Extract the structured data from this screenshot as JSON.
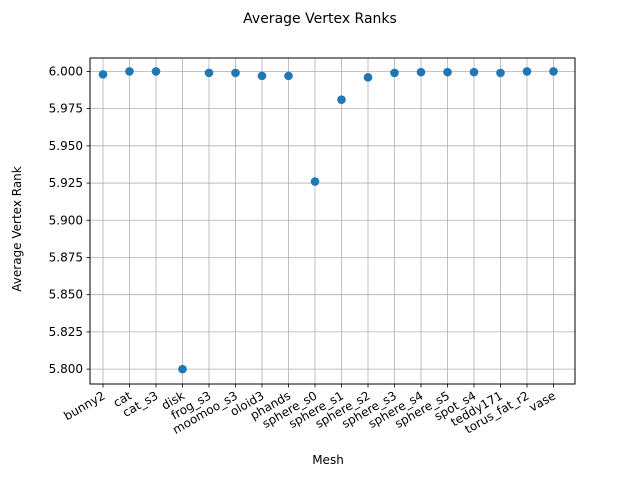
{
  "chart_data": {
    "type": "scatter",
    "title": "Average Vertex Ranks",
    "xlabel": "Mesh",
    "ylabel": "Average Vertex Rank",
    "categories": [
      "bunny2",
      "cat",
      "cat_s3",
      "disk",
      "frog_s3",
      "moomoo_s3",
      "oloid3",
      "phands",
      "sphere_s0",
      "sphere_s1",
      "sphere_s2",
      "sphere_s3",
      "sphere_s4",
      "sphere_s5",
      "spot_s4",
      "teddy171",
      "torus_fat_r2",
      "vase"
    ],
    "values": [
      5.998,
      6.0,
      6.0,
      5.8,
      5.999,
      5.999,
      5.997,
      5.997,
      5.926,
      5.981,
      5.996,
      5.999,
      5.9995,
      5.9995,
      5.9995,
      5.999,
      6.0,
      6.0
    ],
    "ylim": [
      5.79,
      6.009
    ],
    "yticks": [
      "5.800",
      "5.825",
      "5.850",
      "5.875",
      "5.900",
      "5.925",
      "5.950",
      "5.975",
      "6.000"
    ],
    "grid": true,
    "marker_color": "#1f77b4"
  }
}
